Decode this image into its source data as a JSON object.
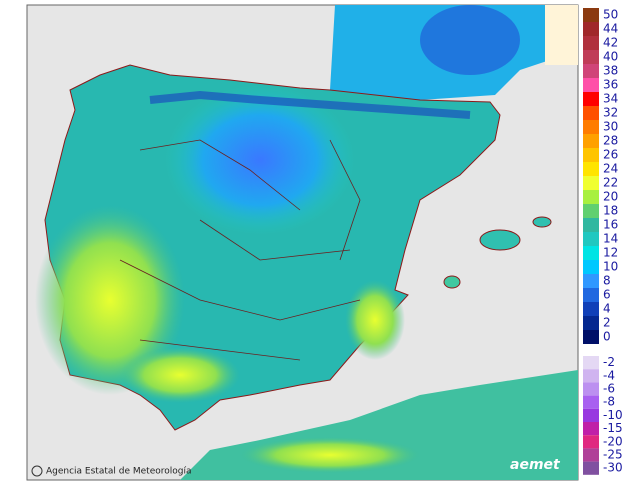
{
  "credit": "Agencia Estatal de Meteorología",
  "logo": "aemet",
  "legend": {
    "positive": [
      {
        "label": "50",
        "color": "#8b3a10"
      },
      {
        "label": "44",
        "color": "#a0282a"
      },
      {
        "label": "42",
        "color": "#b0303c"
      },
      {
        "label": "40",
        "color": "#c03c58"
      },
      {
        "label": "38",
        "color": "#d04478"
      },
      {
        "label": "36",
        "color": "#ff50a8"
      },
      {
        "label": "34",
        "color": "#ff0000"
      },
      {
        "label": "32",
        "color": "#ff5000"
      },
      {
        "label": "30",
        "color": "#ff7c00"
      },
      {
        "label": "28",
        "color": "#ffa000"
      },
      {
        "label": "26",
        "color": "#ffc400"
      },
      {
        "label": "24",
        "color": "#ffe400"
      },
      {
        "label": "22",
        "color": "#f0ff30"
      },
      {
        "label": "20",
        "color": "#a8f040"
      },
      {
        "label": "18",
        "color": "#60d070"
      },
      {
        "label": "16",
        "color": "#30b8a0"
      },
      {
        "label": "14",
        "color": "#20c8c0"
      },
      {
        "label": "12",
        "color": "#00e4e4"
      },
      {
        "label": "10",
        "color": "#00c8ff"
      },
      {
        "label": "8",
        "color": "#3098ff"
      },
      {
        "label": "6",
        "color": "#2068e0"
      },
      {
        "label": "4",
        "color": "#1040b8"
      },
      {
        "label": "2",
        "color": "#042890"
      },
      {
        "label": "0",
        "color": "#001068"
      }
    ],
    "negative": [
      {
        "label": "-2",
        "color": "#e4d8f4"
      },
      {
        "label": "-4",
        "color": "#d0b4f0"
      },
      {
        "label": "-6",
        "color": "#bc90f0"
      },
      {
        "label": "-8",
        "color": "#a860f0"
      },
      {
        "label": "-10",
        "color": "#9838e0"
      },
      {
        "label": "-15",
        "color": "#c020a8"
      },
      {
        "label": "-20",
        "color": "#e02880"
      },
      {
        "label": "-25",
        "color": "#b04098"
      },
      {
        "label": "-30",
        "color": "#8050a0"
      }
    ]
  }
}
